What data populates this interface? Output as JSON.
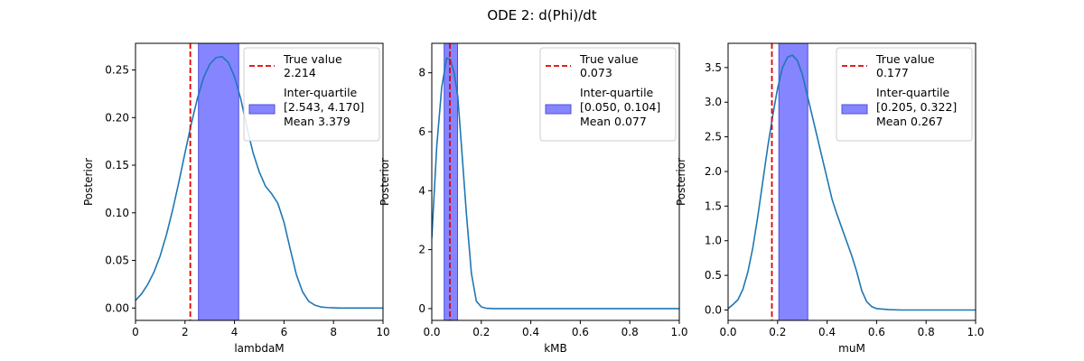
{
  "figure": {
    "suptitle": "ODE 2: d(Phi)/dt",
    "colors": {
      "curve": "#1f77b4",
      "true_line": "#e00000",
      "band": "#7070ff",
      "band_edge": "#5050e0"
    }
  },
  "chart_data": [
    {
      "type": "line",
      "xlabel": "lambdaM",
      "ylabel": "Posterior",
      "xlim": [
        0,
        10
      ],
      "ylim": [
        -0.013,
        0.278
      ],
      "xticks": [
        0,
        2,
        4,
        6,
        8,
        10
      ],
      "xtick_labels": [
        "0",
        "2",
        "4",
        "6",
        "8",
        "10"
      ],
      "yticks": [
        0.0,
        0.05,
        0.1,
        0.15,
        0.2,
        0.25
      ],
      "ytick_labels": [
        "0.00",
        "0.05",
        "0.10",
        "0.15",
        "0.20",
        "0.25"
      ],
      "true_value": 2.214,
      "iqr": [
        2.543,
        4.17
      ],
      "legend": {
        "placement": "top-right",
        "true_label": "True value",
        "true_text": "2.214",
        "iqr_label": "Inter-quartile",
        "iqr_text": "[2.543, 4.170]",
        "mean_text": "Mean 3.379"
      },
      "series": {
        "x": [
          0,
          0.25,
          0.5,
          0.75,
          1,
          1.25,
          1.5,
          1.75,
          2,
          2.25,
          2.5,
          2.75,
          3,
          3.25,
          3.5,
          3.75,
          4,
          4.25,
          4.5,
          4.75,
          5,
          5.25,
          5.5,
          5.75,
          6,
          6.25,
          6.5,
          6.75,
          7,
          7.25,
          7.5,
          7.75,
          8,
          8.25,
          8.5,
          9,
          9.5,
          10
        ],
        "y": [
          0.008,
          0.015,
          0.025,
          0.038,
          0.055,
          0.077,
          0.103,
          0.132,
          0.163,
          0.193,
          0.22,
          0.242,
          0.256,
          0.263,
          0.264,
          0.258,
          0.243,
          0.22,
          0.19,
          0.163,
          0.143,
          0.128,
          0.12,
          0.11,
          0.09,
          0.062,
          0.035,
          0.017,
          0.007,
          0.003,
          0.001,
          0.0005,
          0.0002,
          0,
          0,
          0,
          0,
          0
        ]
      }
    },
    {
      "type": "line",
      "xlabel": "kMB",
      "ylabel": "Posterior",
      "xlim": [
        0,
        1
      ],
      "ylim": [
        -0.4,
        9
      ],
      "xticks": [
        0,
        0.2,
        0.4,
        0.6,
        0.8,
        1.0
      ],
      "xtick_labels": [
        "0.0",
        "0.2",
        "0.4",
        "0.6",
        "0.8",
        "1.0"
      ],
      "yticks": [
        0,
        2,
        4,
        6,
        8
      ],
      "ytick_labels": [
        "0",
        "2",
        "4",
        "6",
        "8"
      ],
      "true_value": 0.073,
      "iqr": [
        0.05,
        0.104
      ],
      "legend": {
        "placement": "top-right",
        "true_label": "True value",
        "true_text": "0.073",
        "iqr_label": "Inter-quartile",
        "iqr_text": "[0.050, 0.104]",
        "mean_text": "Mean 0.077"
      },
      "series": {
        "x": [
          0,
          0.02,
          0.04,
          0.06,
          0.075,
          0.09,
          0.105,
          0.12,
          0.14,
          0.16,
          0.18,
          0.2,
          0.22,
          0.25,
          0.3,
          0.4,
          0.5,
          0.6,
          0.7,
          0.8,
          0.9,
          1.0
        ],
        "y": [
          2.4,
          5.5,
          7.5,
          8.5,
          8.45,
          8.0,
          7.2,
          5.5,
          3.2,
          1.2,
          0.25,
          0.06,
          0.01,
          0,
          0,
          0,
          0,
          0,
          0,
          0,
          0,
          0
        ]
      }
    },
    {
      "type": "line",
      "xlabel": "muM",
      "ylabel": "Posterior",
      "xlim": [
        0,
        1
      ],
      "ylim": [
        -0.15,
        3.85
      ],
      "xticks": [
        0,
        0.2,
        0.4,
        0.6,
        0.8,
        1.0
      ],
      "xtick_labels": [
        "0.0",
        "0.2",
        "0.4",
        "0.6",
        "0.8",
        "1.0"
      ],
      "yticks": [
        0,
        0.5,
        1.0,
        1.5,
        2.0,
        2.5,
        3.0,
        3.5
      ],
      "ytick_labels": [
        "0.0",
        "0.5",
        "1.0",
        "1.5",
        "2.0",
        "2.5",
        "3.0",
        "3.5"
      ],
      "true_value": 0.177,
      "iqr": [
        0.205,
        0.322
      ],
      "legend": {
        "placement": "top-right",
        "true_label": "True value",
        "true_text": "0.177",
        "iqr_label": "Inter-quartile",
        "iqr_text": "[0.205, 0.322]",
        "mean_text": "Mean 0.267"
      },
      "series": {
        "x": [
          0,
          0.02,
          0.04,
          0.06,
          0.08,
          0.1,
          0.12,
          0.14,
          0.16,
          0.18,
          0.2,
          0.22,
          0.24,
          0.26,
          0.28,
          0.3,
          0.32,
          0.34,
          0.36,
          0.38,
          0.4,
          0.42,
          0.44,
          0.46,
          0.48,
          0.5,
          0.52,
          0.54,
          0.56,
          0.58,
          0.6,
          0.65,
          0.7,
          0.8,
          0.9,
          1.0
        ],
        "y": [
          0.02,
          0.08,
          0.15,
          0.3,
          0.55,
          0.9,
          1.35,
          1.85,
          2.35,
          2.8,
          3.2,
          3.5,
          3.65,
          3.68,
          3.6,
          3.4,
          3.1,
          2.8,
          2.5,
          2.2,
          1.9,
          1.6,
          1.38,
          1.18,
          0.98,
          0.78,
          0.55,
          0.28,
          0.12,
          0.05,
          0.02,
          0.005,
          0,
          0,
          0,
          0
        ]
      }
    }
  ]
}
